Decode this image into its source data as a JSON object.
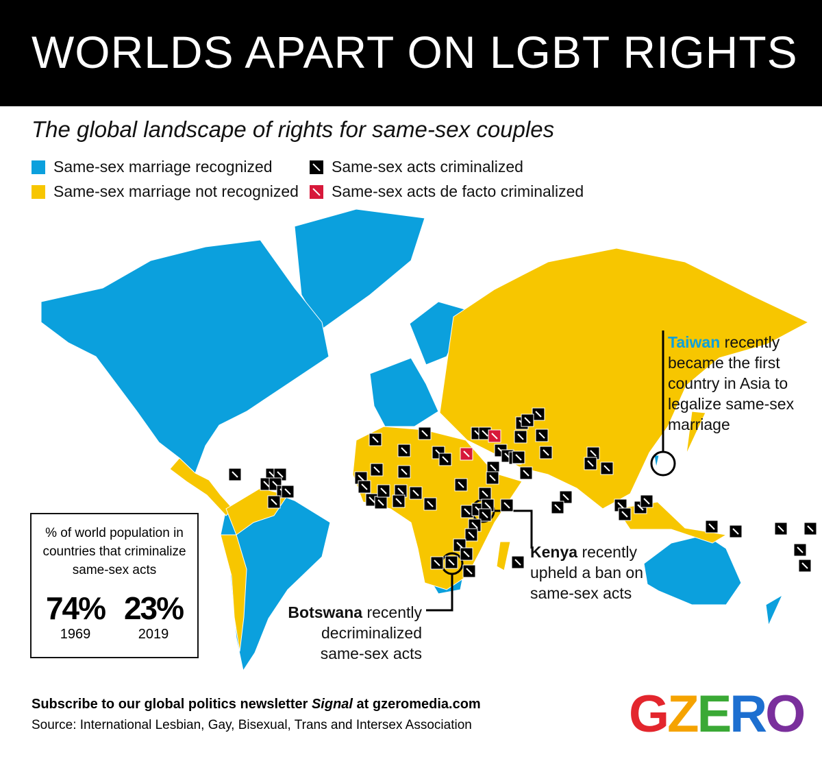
{
  "header": {
    "title": "WORLDS APART ON LGBT RIGHTS"
  },
  "subtitle": "The global landscape of rights for same-sex couples",
  "legend": [
    {
      "label": "Same-sex marriage recognized",
      "color": "#0ba0dd"
    },
    {
      "label": "Same-sex marriage not recognized",
      "color": "#f7c600"
    },
    {
      "label": "Same-sex acts criminalized",
      "color": "#000000"
    },
    {
      "label": "Same-sex acts de facto criminalized",
      "color": "#d7183a"
    }
  ],
  "annotations": {
    "taiwan": {
      "name": "Taiwan",
      "lines": [
        "recently",
        "became the first",
        "country in Asia to",
        "legalize same-sex",
        "marriage"
      ]
    },
    "kenya": {
      "name": "Kenya",
      "lines": [
        "recently",
        "upheld a ban on",
        "same-sex acts"
      ]
    },
    "botswana": {
      "name": "Botswana",
      "lines": [
        "recently",
        "decriminalized",
        "same-sex acts"
      ]
    }
  },
  "inset": {
    "title_lines": [
      "% of world population in",
      "countries that criminalize",
      "same-sex acts"
    ],
    "stats": [
      {
        "value": "74%",
        "year": "1969"
      },
      {
        "value": "23%",
        "year": "2019"
      }
    ]
  },
  "footer": {
    "subscribe": [
      "Subscribe to our global politics newsletter",
      "Signal",
      "at gzeromedia.com"
    ],
    "source": "Source: International Lesbian, Gay, Bisexual, Trans and Intersex Association"
  },
  "logo": {
    "letters": [
      "G",
      "Z",
      "E",
      "R",
      "O"
    ],
    "colors": [
      "#e3262d",
      "#f5a300",
      "#3aa935",
      "#1d6fd0",
      "#7a2f9c"
    ]
  }
}
